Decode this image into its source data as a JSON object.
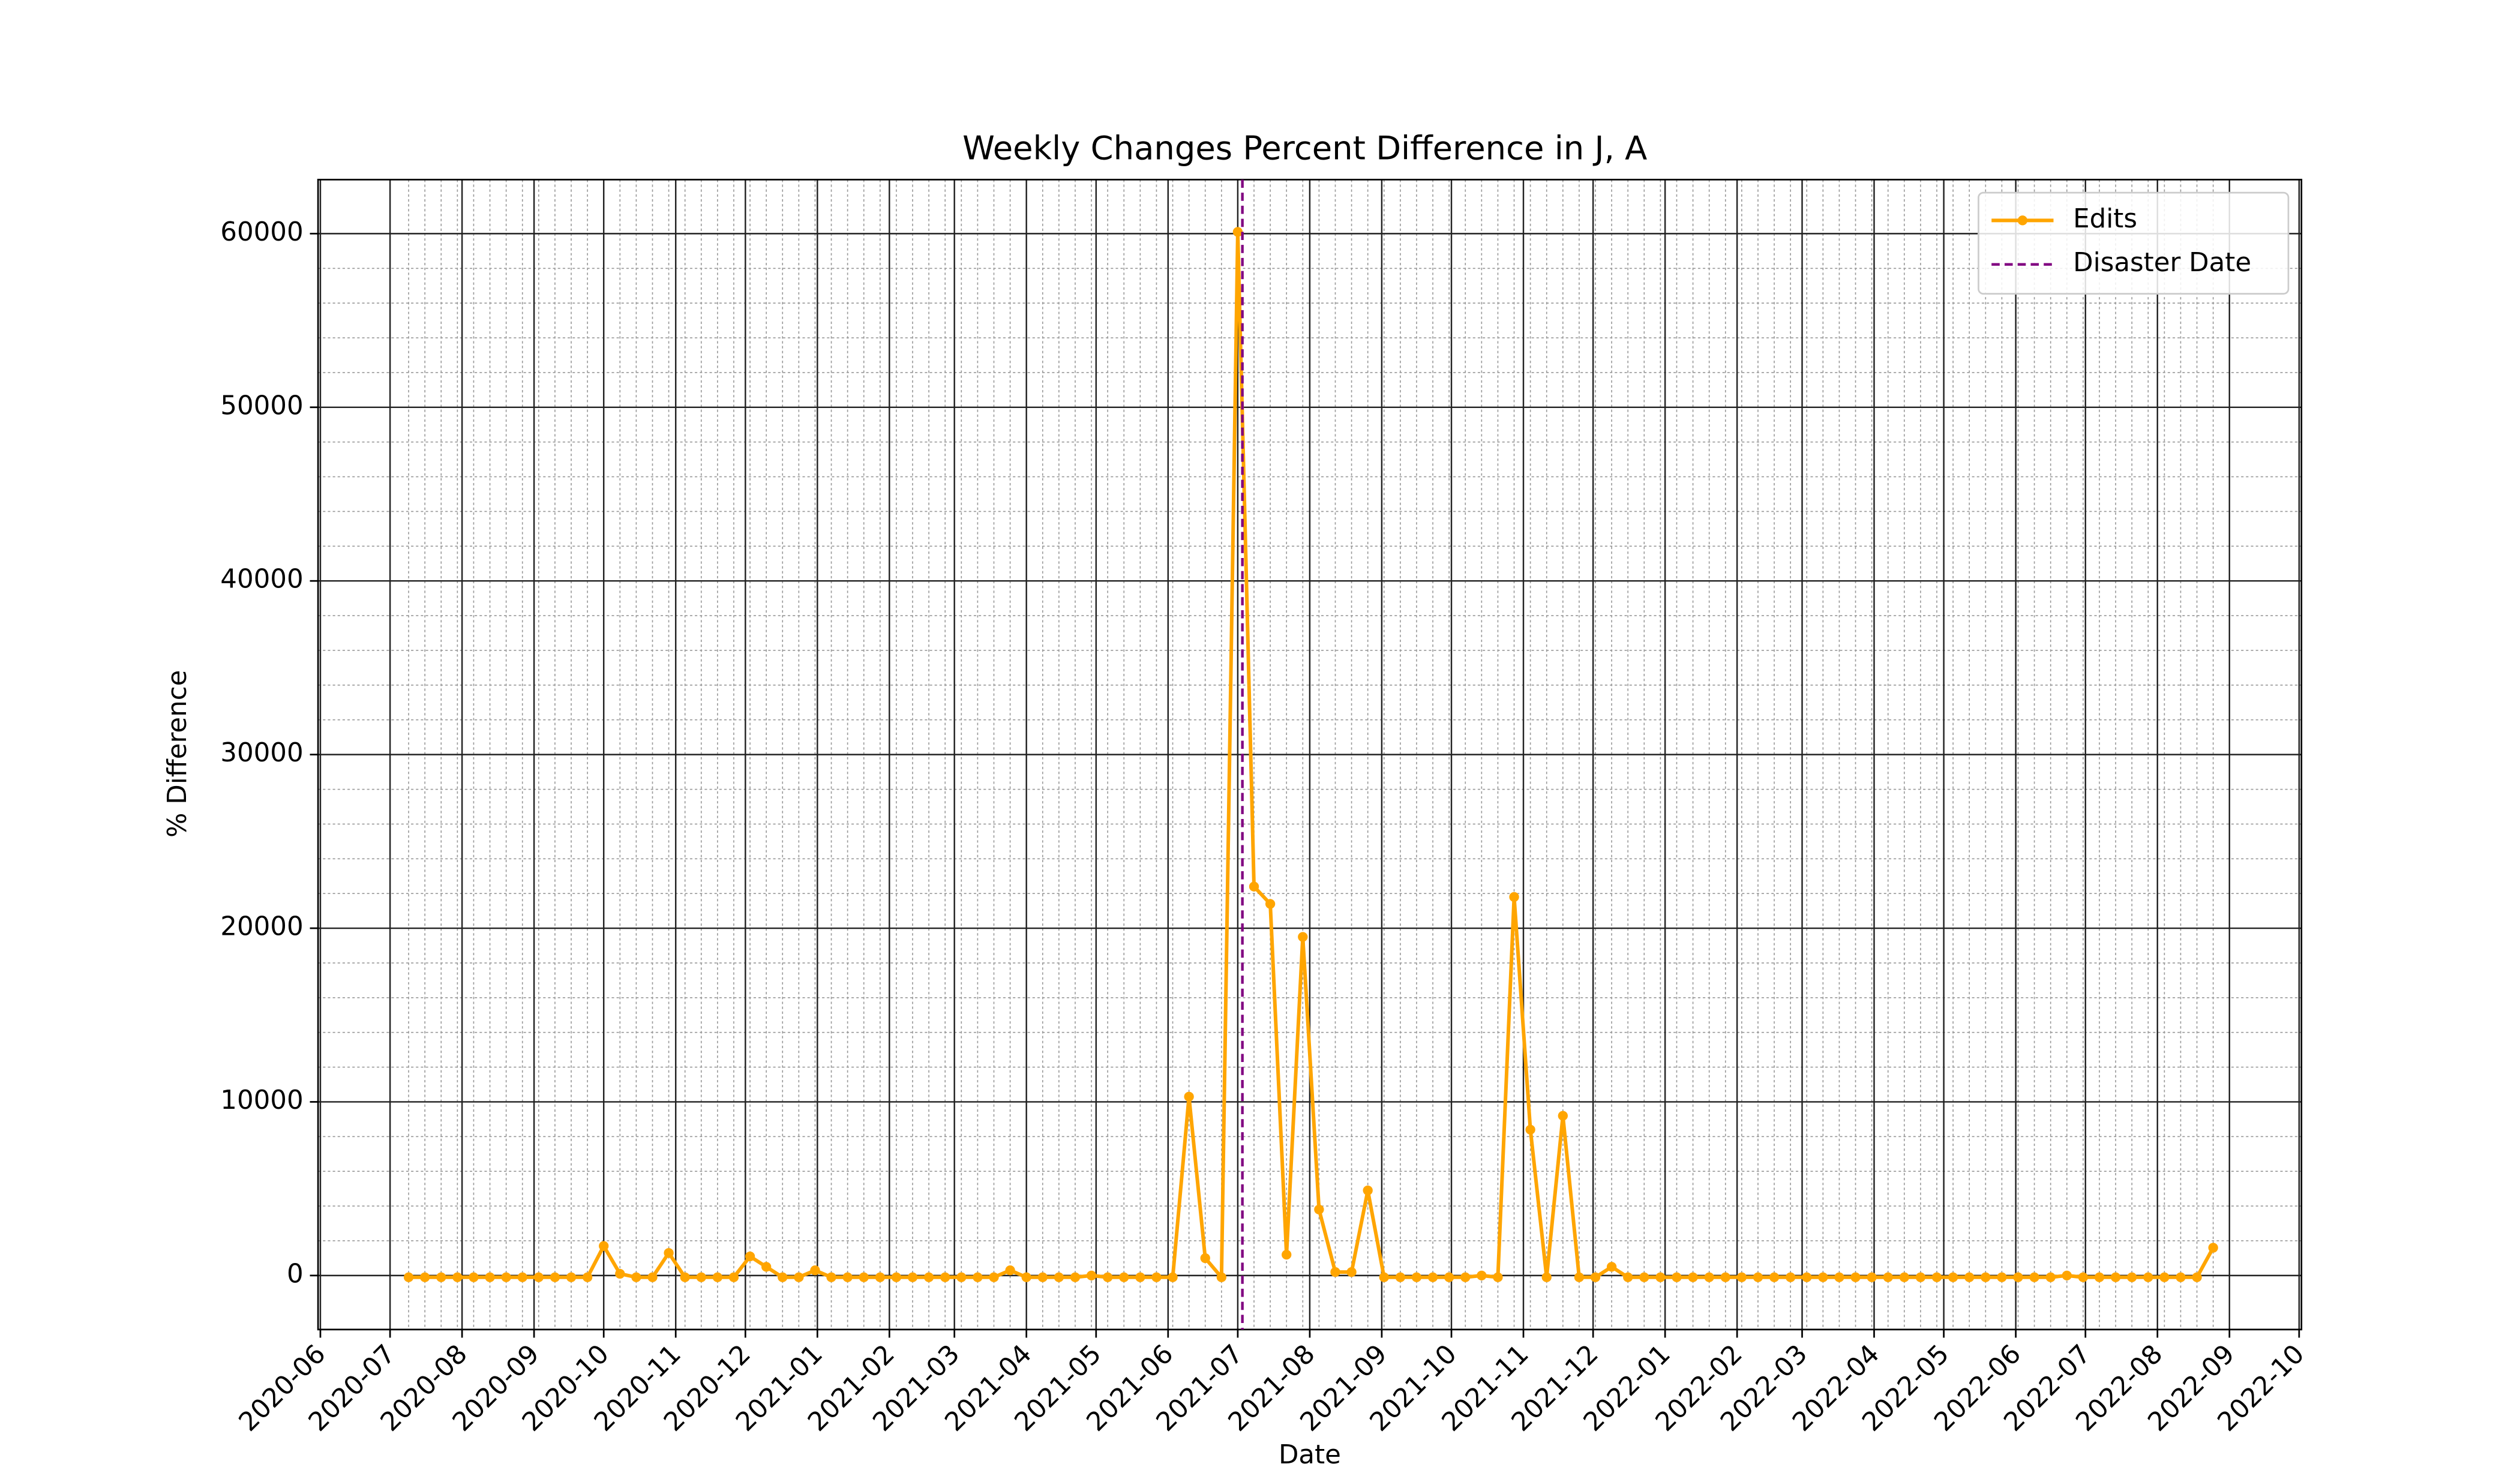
{
  "chart_data": {
    "type": "line",
    "title": "Weekly Changes Percent Difference in J, A",
    "xlabel": "Date",
    "ylabel": "% Difference",
    "x": [
      "2020-07-09",
      "2020-07-16",
      "2020-07-23",
      "2020-07-30",
      "2020-08-06",
      "2020-08-13",
      "2020-08-20",
      "2020-08-27",
      "2020-09-03",
      "2020-09-10",
      "2020-09-17",
      "2020-09-24",
      "2020-10-01",
      "2020-10-08",
      "2020-10-15",
      "2020-10-22",
      "2020-10-29",
      "2020-11-05",
      "2020-11-12",
      "2020-11-19",
      "2020-11-26",
      "2020-12-03",
      "2020-12-10",
      "2020-12-17",
      "2020-12-24",
      "2020-12-31",
      "2021-01-07",
      "2021-01-14",
      "2021-01-21",
      "2021-01-28",
      "2021-02-04",
      "2021-02-11",
      "2021-02-18",
      "2021-02-25",
      "2021-03-04",
      "2021-03-11",
      "2021-03-18",
      "2021-03-25",
      "2021-04-01",
      "2021-04-08",
      "2021-04-15",
      "2021-04-22",
      "2021-04-29",
      "2021-05-06",
      "2021-05-13",
      "2021-05-20",
      "2021-05-27",
      "2021-06-03",
      "2021-06-10",
      "2021-06-17",
      "2021-06-24",
      "2021-07-01",
      "2021-07-08",
      "2021-07-15",
      "2021-07-22",
      "2021-07-29",
      "2021-08-05",
      "2021-08-12",
      "2021-08-19",
      "2021-08-26",
      "2021-09-02",
      "2021-09-09",
      "2021-09-16",
      "2021-09-23",
      "2021-09-30",
      "2021-10-07",
      "2021-10-14",
      "2021-10-21",
      "2021-10-28",
      "2021-11-04",
      "2021-11-11",
      "2021-11-18",
      "2021-11-25",
      "2021-12-02",
      "2021-12-09",
      "2021-12-16",
      "2021-12-23",
      "2021-12-30",
      "2022-01-06",
      "2022-01-13",
      "2022-01-20",
      "2022-01-27",
      "2022-02-03",
      "2022-02-10",
      "2022-02-17",
      "2022-02-24",
      "2022-03-03",
      "2022-03-10",
      "2022-03-17",
      "2022-03-24",
      "2022-03-31",
      "2022-04-07",
      "2022-04-14",
      "2022-04-21",
      "2022-04-28",
      "2022-05-05",
      "2022-05-12",
      "2022-05-19",
      "2022-05-26",
      "2022-06-02",
      "2022-06-09",
      "2022-06-16",
      "2022-06-23",
      "2022-06-30",
      "2022-07-07",
      "2022-07-14",
      "2022-07-21",
      "2022-07-28",
      "2022-08-04",
      "2022-08-11",
      "2022-08-18",
      "2022-08-25"
    ],
    "series": [
      {
        "name": "Edits",
        "color": "#ffa500",
        "values": [
          -100,
          -100,
          -100,
          -100,
          -100,
          -100,
          -100,
          -100,
          -100,
          -100,
          -100,
          -100,
          1700,
          100,
          -100,
          -100,
          1300,
          -100,
          -100,
          -100,
          -100,
          1100,
          500,
          -100,
          -100,
          300,
          -100,
          -100,
          -100,
          -100,
          -100,
          -100,
          -100,
          -100,
          -100,
          -100,
          -100,
          300,
          -100,
          -100,
          -100,
          -100,
          0,
          -100,
          -100,
          -100,
          -100,
          -100,
          10300,
          1000,
          -100,
          60100,
          22400,
          21400,
          1200,
          19500,
          3800,
          200,
          200,
          4900,
          -100,
          -100,
          -100,
          -100,
          -100,
          -100,
          0,
          -100,
          21800,
          8400,
          -100,
          9200,
          -100,
          -100,
          500,
          -100,
          -100,
          -100,
          -100,
          -100,
          -100,
          -100,
          -100,
          -100,
          -100,
          -100,
          -100,
          -100,
          -100,
          -100,
          -100,
          -100,
          -100,
          -100,
          -100,
          -100,
          -100,
          -100,
          -100,
          -100,
          -100,
          -100,
          0,
          -100,
          -100,
          -100,
          -100,
          -100,
          -100,
          -100,
          -100,
          1600
        ]
      }
    ],
    "vline": {
      "name": "Disaster Date",
      "x": "2021-07-03",
      "color": "#800080"
    },
    "xlim": [
      "2020-05-31",
      "2022-10-02"
    ],
    "xticks": [
      "2020-06",
      "2020-07",
      "2020-08",
      "2020-09",
      "2020-10",
      "2020-11",
      "2020-12",
      "2021-01",
      "2021-02",
      "2021-03",
      "2021-04",
      "2021-05",
      "2021-06",
      "2021-07",
      "2021-08",
      "2021-09",
      "2021-10",
      "2021-11",
      "2021-12",
      "2022-01",
      "2022-02",
      "2022-03",
      "2022-04",
      "2022-05",
      "2022-06",
      "2022-07",
      "2022-08",
      "2022-09",
      "2022-10"
    ],
    "ylim": [
      -3110,
      63110
    ],
    "yticks": [
      0,
      10000,
      20000,
      30000,
      40000,
      50000,
      60000
    ],
    "grid": true,
    "minor_grid": true,
    "legend": "upper right"
  }
}
